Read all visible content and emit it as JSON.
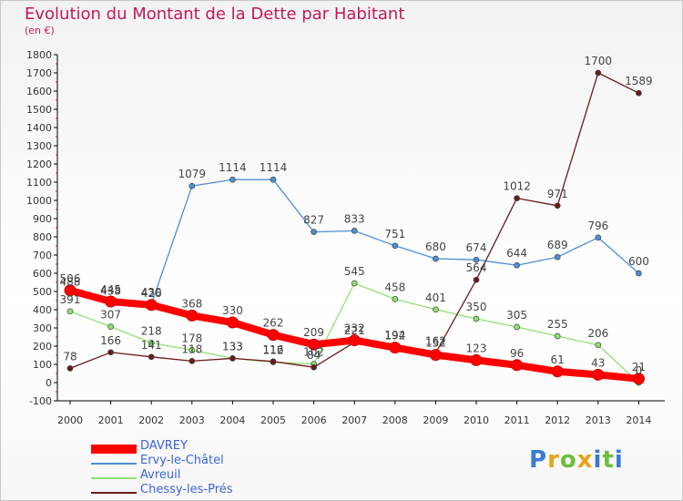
{
  "chart_data": {
    "type": "line",
    "title": "Evolution du Montant de la Dette par Habitant",
    "subtitle": "(en €)",
    "x": [
      "2000",
      "2001",
      "2002",
      "2003",
      "2004",
      "2005",
      "2006",
      "2007",
      "2008",
      "2009",
      "2010",
      "2011",
      "2012",
      "2013",
      "2014"
    ],
    "ylim": [
      -100,
      1800
    ],
    "yticks": [
      -100,
      0,
      100,
      200,
      300,
      400,
      500,
      600,
      700,
      800,
      900,
      1000,
      1100,
      1200,
      1300,
      1400,
      1500,
      1600,
      1700,
      1800
    ],
    "grid": false,
    "legend_placement": "bottom-left",
    "series": [
      {
        "name": "DAVREY",
        "color": "#ff0000",
        "values": [
          506,
          445,
          426,
          368,
          330,
          262,
          209,
          232,
          192,
          152,
          123,
          96,
          61,
          43,
          21
        ]
      },
      {
        "name": "Ervy-le-Châtel",
        "color": "#4d8fd6",
        "values": [
          488,
          438,
          430,
          1079,
          1114,
          1114,
          827,
          833,
          751,
          680,
          674,
          644,
          689,
          796,
          600
        ]
      },
      {
        "name": "Avreuil",
        "color": "#90e070",
        "values": [
          391,
          307,
          218,
          178,
          133,
          112,
          102,
          545,
          458,
          401,
          350,
          305,
          255,
          206,
          0
        ]
      },
      {
        "name": "Chessy-les-Prés",
        "color": "#6b1a1a",
        "values": [
          78,
          166,
          141,
          118,
          133,
          116,
          84,
          221,
          194,
          162,
          564,
          1012,
          971,
          1700,
          1589
        ]
      }
    ]
  },
  "logo": {
    "text": "Proxiti",
    "letter_colors": [
      "#3a7bd5",
      "#e8a317",
      "#6cbf3c",
      "#e8a317",
      "#3a7bd5",
      "#6cbf3c",
      "#3a7bd5"
    ]
  }
}
